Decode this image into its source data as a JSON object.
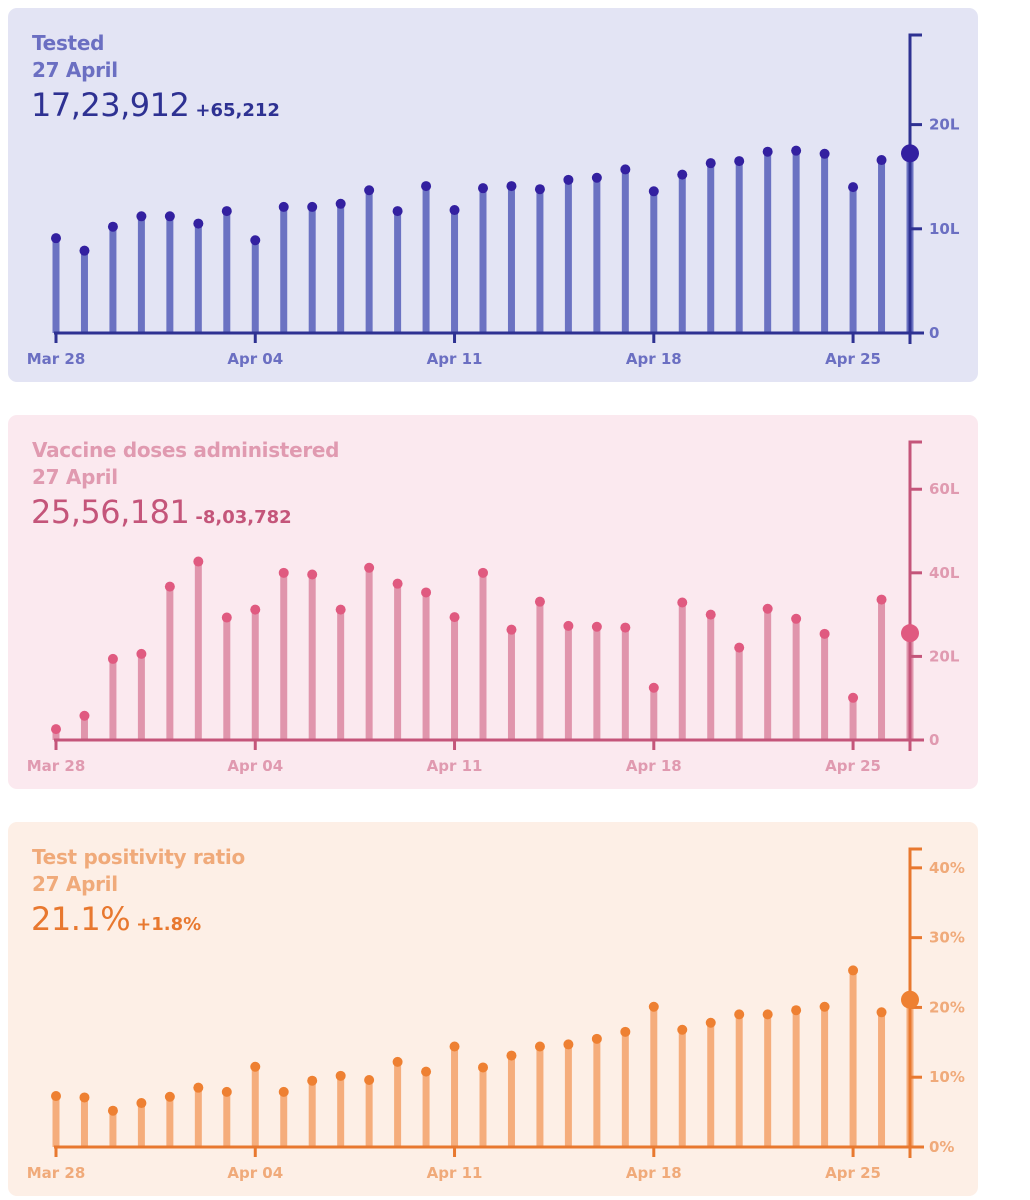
{
  "cards": [
    {
      "title": "Tested",
      "date": "27 April",
      "value": "17,23,912",
      "delta": "+65,212",
      "colors": {
        "bg": "#e3e4f4",
        "text": "#6b6fc2",
        "value": "#2e3192",
        "bar": "#6b72c2",
        "dot": "#3320a0",
        "axis": "#2e3192"
      }
    },
    {
      "title": "Vaccine doses administered",
      "date": "27 April",
      "value": "25,56,181",
      "delta": "-8,03,782",
      "colors": {
        "bg": "#fbe9ef",
        "text": "#e09ab0",
        "value": "#c4557a",
        "bar": "#e095ac",
        "dot": "#e05a80",
        "axis": "#c4557a"
      }
    },
    {
      "title": "Test positivity ratio",
      "date": "27 April",
      "value": "21.1%",
      "delta": "+1.8%",
      "colors": {
        "bg": "#fdefe6",
        "text": "#f0aa7a",
        "value": "#e8782f",
        "bar": "#f5ad7c",
        "dot": "#ee8032",
        "axis": "#e8782f"
      }
    }
  ],
  "chart_data": [
    {
      "type": "bar",
      "title": "Tested",
      "unit": "lakh",
      "x": [
        "Mar 28",
        "Mar 29",
        "Mar 30",
        "Mar 31",
        "Apr 01",
        "Apr 02",
        "Apr 03",
        "Apr 04",
        "Apr 05",
        "Apr 06",
        "Apr 07",
        "Apr 08",
        "Apr 09",
        "Apr 10",
        "Apr 11",
        "Apr 12",
        "Apr 13",
        "Apr 14",
        "Apr 15",
        "Apr 16",
        "Apr 17",
        "Apr 18",
        "Apr 19",
        "Apr 20",
        "Apr 21",
        "Apr 22",
        "Apr 23",
        "Apr 24",
        "Apr 25",
        "Apr 26",
        "Apr 27"
      ],
      "values": [
        9.1,
        7.9,
        10.2,
        11.2,
        11.2,
        10.5,
        11.7,
        8.9,
        12.1,
        12.1,
        12.4,
        13.7,
        11.7,
        14.1,
        11.8,
        13.9,
        14.1,
        13.8,
        14.7,
        14.9,
        15.7,
        13.6,
        15.2,
        16.3,
        16.5,
        17.4,
        17.5,
        17.2,
        14.0,
        16.6,
        17.24
      ],
      "xticks": [
        "Mar 28",
        "Apr 04",
        "Apr 11",
        "Apr 18",
        "Apr 25"
      ],
      "yticks": [
        0,
        10,
        20
      ],
      "ytick_labels": [
        "0",
        "10L",
        "20L"
      ],
      "ylim": [
        0,
        28.6
      ],
      "xlabel": "",
      "ylabel": "",
      "highlight": "Apr 27",
      "grid": false
    },
    {
      "type": "bar",
      "title": "Vaccine doses administered",
      "unit": "lakh",
      "x": [
        "Mar 28",
        "Mar 29",
        "Mar 30",
        "Mar 31",
        "Apr 01",
        "Apr 02",
        "Apr 03",
        "Apr 04",
        "Apr 05",
        "Apr 06",
        "Apr 07",
        "Apr 08",
        "Apr 09",
        "Apr 10",
        "Apr 11",
        "Apr 12",
        "Apr 13",
        "Apr 14",
        "Apr 15",
        "Apr 16",
        "Apr 17",
        "Apr 18",
        "Apr 19",
        "Apr 20",
        "Apr 21",
        "Apr 22",
        "Apr 23",
        "Apr 24",
        "Apr 25",
        "Apr 26",
        "Apr 27"
      ],
      "values": [
        2.6,
        5.8,
        19.4,
        20.6,
        36.7,
        42.7,
        29.3,
        31.2,
        40.0,
        39.6,
        31.2,
        41.2,
        37.4,
        35.3,
        29.4,
        40.0,
        26.4,
        33.1,
        27.3,
        27.1,
        26.9,
        12.5,
        32.9,
        30.0,
        22.1,
        31.4,
        29.0,
        25.4,
        10.1,
        33.6,
        25.56
      ],
      "xticks": [
        "Mar 28",
        "Apr 04",
        "Apr 11",
        "Apr 18",
        "Apr 25"
      ],
      "yticks": [
        0,
        20,
        40,
        60
      ],
      "ytick_labels": [
        "0",
        "20L",
        "40L",
        "60L"
      ],
      "ylim": [
        0,
        71.3
      ],
      "xlabel": "",
      "ylabel": "",
      "highlight": "Apr 27",
      "grid": false
    },
    {
      "type": "bar",
      "title": "Test positivity ratio",
      "unit": "percent",
      "x": [
        "Mar 28",
        "Mar 29",
        "Mar 30",
        "Mar 31",
        "Apr 01",
        "Apr 02",
        "Apr 03",
        "Apr 04",
        "Apr 05",
        "Apr 06",
        "Apr 07",
        "Apr 08",
        "Apr 09",
        "Apr 10",
        "Apr 11",
        "Apr 12",
        "Apr 13",
        "Apr 14",
        "Apr 15",
        "Apr 16",
        "Apr 17",
        "Apr 18",
        "Apr 19",
        "Apr 20",
        "Apr 21",
        "Apr 22",
        "Apr 23",
        "Apr 24",
        "Apr 25",
        "Apr 26",
        "Apr 27"
      ],
      "values": [
        7.3,
        7.1,
        5.2,
        6.3,
        7.2,
        8.5,
        7.9,
        11.5,
        7.9,
        9.5,
        10.2,
        9.6,
        12.2,
        10.8,
        14.4,
        11.4,
        13.1,
        14.4,
        14.7,
        15.5,
        16.5,
        20.1,
        16.8,
        17.8,
        19.0,
        19.0,
        19.6,
        20.1,
        25.3,
        19.3,
        21.1
      ],
      "xticks": [
        "Mar 28",
        "Apr 04",
        "Apr 11",
        "Apr 18",
        "Apr 25"
      ],
      "yticks": [
        0,
        10,
        20,
        30,
        40
      ],
      "ytick_labels": [
        "0%",
        "10%",
        "20%",
        "30%",
        "40%"
      ],
      "ylim": [
        0,
        42.7
      ],
      "xlabel": "",
      "ylabel": "",
      "highlight": "Apr 27",
      "grid": false
    }
  ]
}
